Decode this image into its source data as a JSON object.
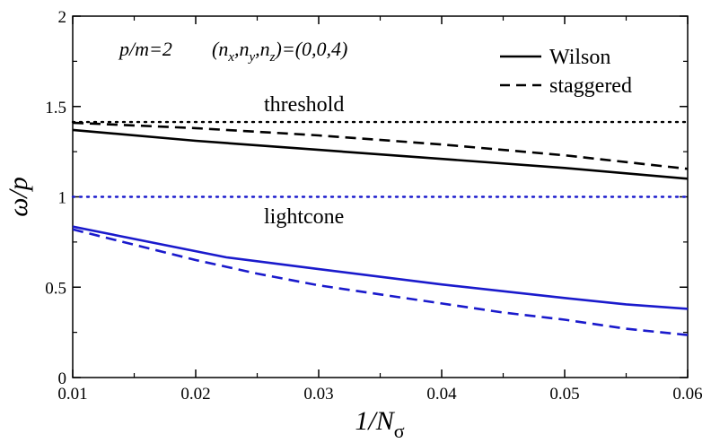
{
  "chart_data": {
    "type": "line",
    "title": "",
    "xlabel_main": "1/N",
    "xlabel_sub": "σ",
    "ylabel": "ω/p",
    "xlim": [
      0.01,
      0.06
    ],
    "ylim": [
      0,
      2
    ],
    "x_ticks": [
      "0.01",
      "0.02",
      "0.03",
      "0.04",
      "0.05",
      "0.06"
    ],
    "y_ticks": [
      "0",
      "0.5",
      "1",
      "1.5",
      "2"
    ],
    "x_tick_values": [
      0.01,
      0.02,
      0.03,
      0.04,
      0.05,
      0.06
    ],
    "y_tick_values": [
      0,
      0.5,
      1,
      1.5,
      2
    ],
    "grid": false,
    "legend_position": "top-right",
    "annotation_params": "p/m=2",
    "annotation_momentum": "(n_x,n_y,n_z)=(0,0,4)",
    "legend": [
      {
        "name": "Wilson",
        "dash": "solid"
      },
      {
        "name": "staggered",
        "dash": "dashed"
      }
    ],
    "reference_lines": [
      {
        "name": "threshold",
        "y": 1.414,
        "color": "#000000"
      },
      {
        "name": "lightcone",
        "y": 1.0,
        "color": "#1a1acc"
      }
    ],
    "series": [
      {
        "color": "#000000",
        "dash": "solid",
        "x": [
          0.01,
          0.02,
          0.03,
          0.04,
          0.05,
          0.06
        ],
        "y": [
          1.37,
          1.31,
          1.26,
          1.21,
          1.16,
          1.1
        ]
      },
      {
        "color": "#000000",
        "dash": "dashed",
        "x": [
          0.01,
          0.02,
          0.03,
          0.04,
          0.05,
          0.06
        ],
        "y": [
          1.41,
          1.38,
          1.34,
          1.29,
          1.23,
          1.155
        ]
      },
      {
        "color": "#1a1acc",
        "dash": "solid",
        "x": [
          0.01,
          0.0225,
          0.03,
          0.04,
          0.05,
          0.055,
          0.06
        ],
        "y": [
          0.835,
          0.665,
          0.6,
          0.515,
          0.44,
          0.405,
          0.38
        ]
      },
      {
        "color": "#1a1acc",
        "dash": "dashed",
        "x": [
          0.01,
          0.02,
          0.025,
          0.03,
          0.035,
          0.04,
          0.045,
          0.05,
          0.055,
          0.06
        ],
        "y": [
          0.82,
          0.65,
          0.575,
          0.51,
          0.46,
          0.41,
          0.36,
          0.32,
          0.27,
          0.235
        ]
      }
    ]
  }
}
